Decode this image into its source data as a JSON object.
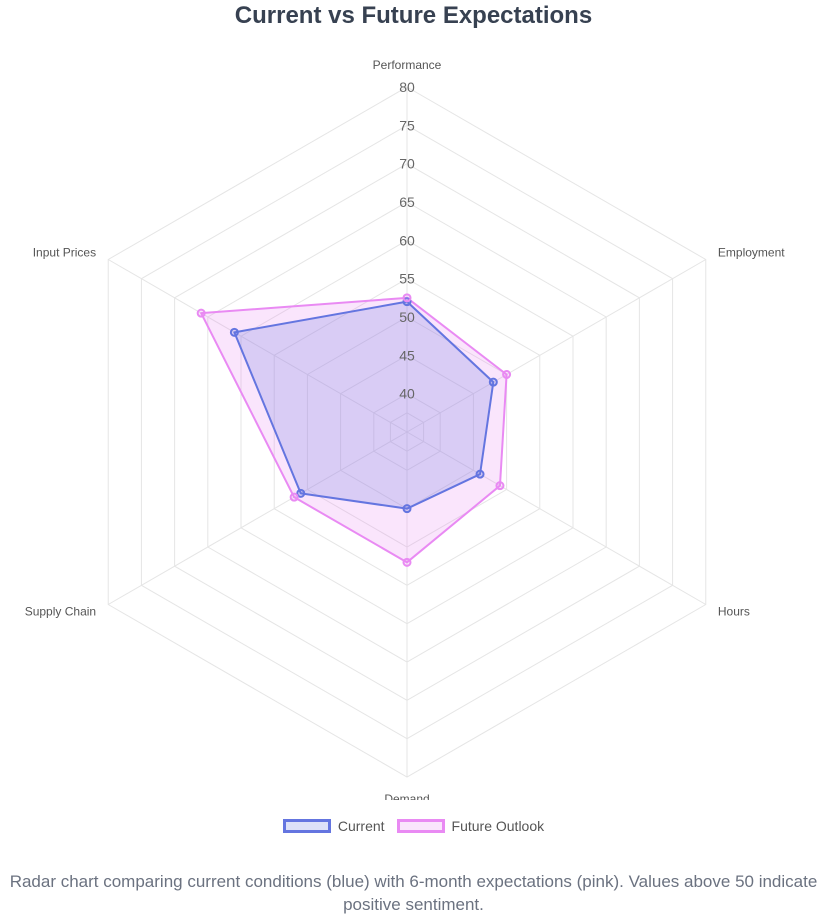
{
  "chart_data": {
    "type": "radar",
    "title": "Current vs Future Expectations",
    "axes": [
      "Performance",
      "Employment",
      "Hours",
      "Demand",
      "Supply Chain",
      "Input Prices"
    ],
    "rlim": [
      35,
      80
    ],
    "ticks": [
      "40",
      "45",
      "50",
      "55",
      "60",
      "65",
      "70",
      "75",
      "80"
    ],
    "series": [
      {
        "name": "Current",
        "values": [
          52,
          48,
          46,
          45,
          51,
          61
        ],
        "color": "#6475e0",
        "fill": "rgba(100,117,224,0.22)"
      },
      {
        "name": "Future Outlook",
        "values": [
          52.5,
          50,
          49,
          52,
          52,
          66
        ],
        "color": "#e98af3",
        "fill": "rgba(233,138,243,0.22)"
      }
    ],
    "grid": true,
    "legend": "bottom"
  },
  "caption": "Radar chart comparing current conditions (blue) with 6-month expectations (pink). Values above 50 indicate positive sentiment."
}
